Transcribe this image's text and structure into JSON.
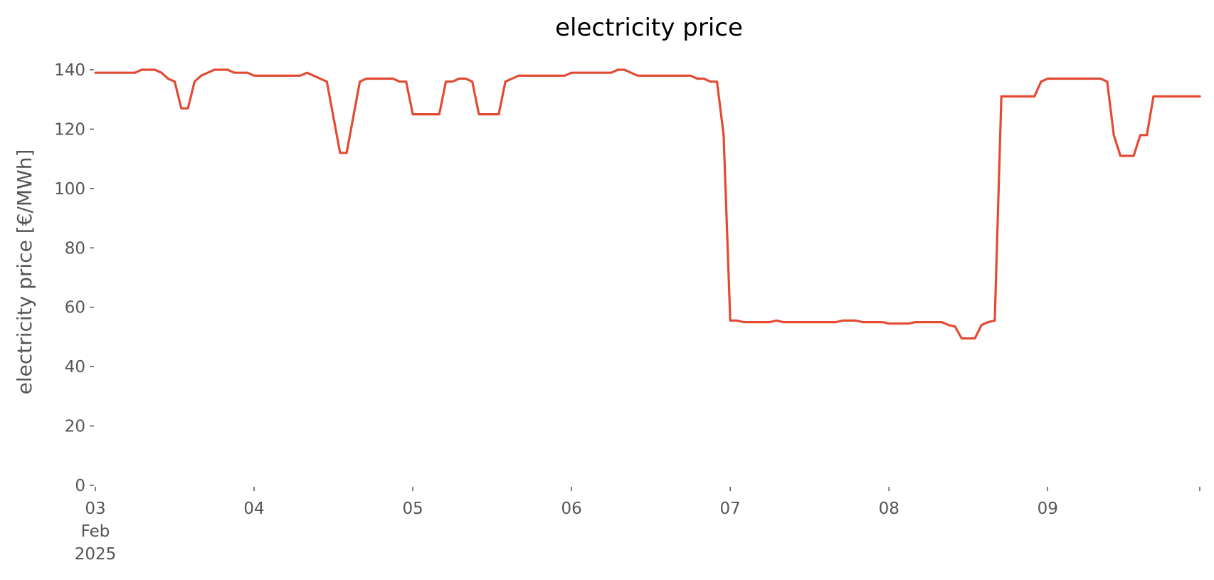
{
  "chart_data": {
    "type": "line",
    "title": "electricity price",
    "xlabel": "",
    "ylabel": "electricity price [€/MWh]",
    "ylim": [
      0,
      140
    ],
    "xlim": [
      "2025-02-03T00:00",
      "2025-02-09T23:00"
    ],
    "yticks": [
      0,
      20,
      40,
      60,
      80,
      100,
      120,
      140
    ],
    "xticks": [
      {
        "date": "2025-02-03",
        "lines": [
          "03",
          "Feb",
          "2025"
        ]
      },
      {
        "date": "2025-02-04",
        "lines": [
          "04"
        ]
      },
      {
        "date": "2025-02-05",
        "lines": [
          "05"
        ]
      },
      {
        "date": "2025-02-06",
        "lines": [
          "06"
        ]
      },
      {
        "date": "2025-02-07",
        "lines": [
          "07"
        ]
      },
      {
        "date": "2025-02-08",
        "lines": [
          "08"
        ]
      },
      {
        "date": "2025-02-09",
        "lines": [
          "09"
        ]
      }
    ],
    "grid": false,
    "series": [
      {
        "color": "#E24A33",
        "points": [
          [
            "2025-02-03T00:00",
            139
          ],
          [
            "2025-02-03T06:00",
            139
          ],
          [
            "2025-02-03T07:00",
            140
          ],
          [
            "2025-02-03T09:00",
            140
          ],
          [
            "2025-02-03T10:00",
            139
          ],
          [
            "2025-02-03T11:00",
            137
          ],
          [
            "2025-02-03T12:00",
            136
          ],
          [
            "2025-02-03T13:00",
            127
          ],
          [
            "2025-02-03T14:00",
            127
          ],
          [
            "2025-02-03T15:00",
            136
          ],
          [
            "2025-02-03T16:00",
            138
          ],
          [
            "2025-02-03T18:00",
            140
          ],
          [
            "2025-02-03T20:00",
            140
          ],
          [
            "2025-02-03T21:00",
            139
          ],
          [
            "2025-02-03T23:00",
            139
          ],
          [
            "2025-02-04T00:00",
            138
          ],
          [
            "2025-02-04T07:00",
            138
          ],
          [
            "2025-02-04T08:00",
            139
          ],
          [
            "2025-02-04T11:00",
            136
          ],
          [
            "2025-02-04T13:00",
            112
          ],
          [
            "2025-02-04T14:00",
            112
          ],
          [
            "2025-02-04T16:00",
            136
          ],
          [
            "2025-02-04T17:00",
            137
          ],
          [
            "2025-02-04T21:00",
            137
          ],
          [
            "2025-02-04T22:00",
            136
          ],
          [
            "2025-02-04T23:00",
            136
          ],
          [
            "2025-02-05T00:00",
            125
          ],
          [
            "2025-02-05T04:00",
            125
          ],
          [
            "2025-02-05T05:00",
            136
          ],
          [
            "2025-02-05T06:00",
            136
          ],
          [
            "2025-02-05T07:00",
            137
          ],
          [
            "2025-02-05T08:00",
            137
          ],
          [
            "2025-02-05T09:00",
            136
          ],
          [
            "2025-02-05T10:00",
            125
          ],
          [
            "2025-02-05T13:00",
            125
          ],
          [
            "2025-02-05T14:00",
            136
          ],
          [
            "2025-02-05T16:00",
            138
          ],
          [
            "2025-02-05T23:00",
            138
          ],
          [
            "2025-02-06T00:00",
            139
          ],
          [
            "2025-02-06T06:00",
            139
          ],
          [
            "2025-02-06T07:00",
            140
          ],
          [
            "2025-02-06T08:00",
            140
          ],
          [
            "2025-02-06T10:00",
            138
          ],
          [
            "2025-02-06T18:00",
            138
          ],
          [
            "2025-02-06T19:00",
            137
          ],
          [
            "2025-02-06T20:00",
            137
          ],
          [
            "2025-02-06T21:00",
            136
          ],
          [
            "2025-02-06T22:00",
            136
          ],
          [
            "2025-02-06T23:00",
            118
          ],
          [
            "2025-02-07T00:00",
            55.5
          ],
          [
            "2025-02-07T01:00",
            55.5
          ],
          [
            "2025-02-07T02:00",
            55
          ],
          [
            "2025-02-07T06:00",
            55
          ],
          [
            "2025-02-07T07:00",
            55.5
          ],
          [
            "2025-02-07T08:00",
            55
          ],
          [
            "2025-02-07T16:00",
            55
          ],
          [
            "2025-02-07T17:00",
            55.5
          ],
          [
            "2025-02-07T19:00",
            55.5
          ],
          [
            "2025-02-07T20:00",
            55
          ],
          [
            "2025-02-07T23:00",
            55
          ],
          [
            "2025-02-08T00:00",
            54.5
          ],
          [
            "2025-02-08T03:00",
            54.5
          ],
          [
            "2025-02-08T04:00",
            55
          ],
          [
            "2025-02-08T08:00",
            55
          ],
          [
            "2025-02-08T09:00",
            54
          ],
          [
            "2025-02-08T10:00",
            53.5
          ],
          [
            "2025-02-08T11:00",
            49.5
          ],
          [
            "2025-02-08T13:00",
            49.5
          ],
          [
            "2025-02-08T14:00",
            54
          ],
          [
            "2025-02-08T15:00",
            55
          ],
          [
            "2025-02-08T16:00",
            55.5
          ],
          [
            "2025-02-08T17:00",
            131
          ],
          [
            "2025-02-08T22:00",
            131
          ],
          [
            "2025-02-08T23:00",
            136
          ],
          [
            "2025-02-09T00:00",
            137
          ],
          [
            "2025-02-09T08:00",
            137
          ],
          [
            "2025-02-09T09:00",
            136
          ],
          [
            "2025-02-09T10:00",
            118
          ],
          [
            "2025-02-09T11:00",
            111
          ],
          [
            "2025-02-09T13:00",
            111
          ],
          [
            "2025-02-09T14:00",
            118
          ],
          [
            "2025-02-09T15:00",
            118
          ],
          [
            "2025-02-09T16:00",
            131
          ],
          [
            "2025-02-09T23:00",
            131
          ]
        ]
      }
    ]
  }
}
